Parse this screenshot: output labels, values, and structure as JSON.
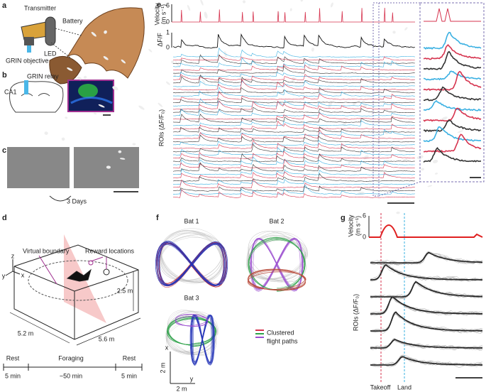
{
  "panel_a": {
    "label": "a",
    "transmitter": "Transmitter",
    "battery": "Battery",
    "grin_objective": "GRIN objective",
    "led": "LED"
  },
  "panel_b": {
    "label": "b",
    "grin_relay": "GRIN relay",
    "ca1": "CA1"
  },
  "panel_c": {
    "label": "c",
    "interval": "3 Days"
  },
  "panel_d": {
    "label": "d",
    "virtual_boundary": "Virtual boundary",
    "reward_locations": "Reward locations",
    "height": "2.5 m",
    "width": "5.2 m",
    "depth": "5.6 m",
    "axes": [
      "z",
      "y",
      "x"
    ],
    "timeline": [
      {
        "phase": "Rest",
        "duration": "5 min"
      },
      {
        "phase": "Foraging",
        "duration": "~50 min"
      },
      {
        "phase": "Rest",
        "duration": "5 min"
      }
    ]
  },
  "panel_e": {
    "label": "e",
    "velocity_label": [
      "Velocity",
      "(m s⁻¹)"
    ],
    "velocity_ticks": [
      "6",
      "0"
    ],
    "dff_label": "ΔF/F",
    "dff_ticks": [
      "1",
      "0"
    ],
    "rois_label": "ROIs (ΔF/F₀)"
  },
  "panel_f": {
    "label": "f",
    "bats": [
      "Bat 1",
      "Bat 2",
      "Bat 3"
    ],
    "legend": [
      "Clustered",
      "flight paths"
    ],
    "scale_x": "2 m",
    "scale_y": "2 m",
    "axis_x": "x",
    "axis_y": "y"
  },
  "panel_g": {
    "label": "g",
    "velocity_label": [
      "Velocity",
      "(m s⁻¹)"
    ],
    "velocity_ticks": [
      "6",
      "0"
    ],
    "rois_label": "ROIs (ΔF/F₀)",
    "takeoff": "Takeoff",
    "land": "Land"
  }
}
